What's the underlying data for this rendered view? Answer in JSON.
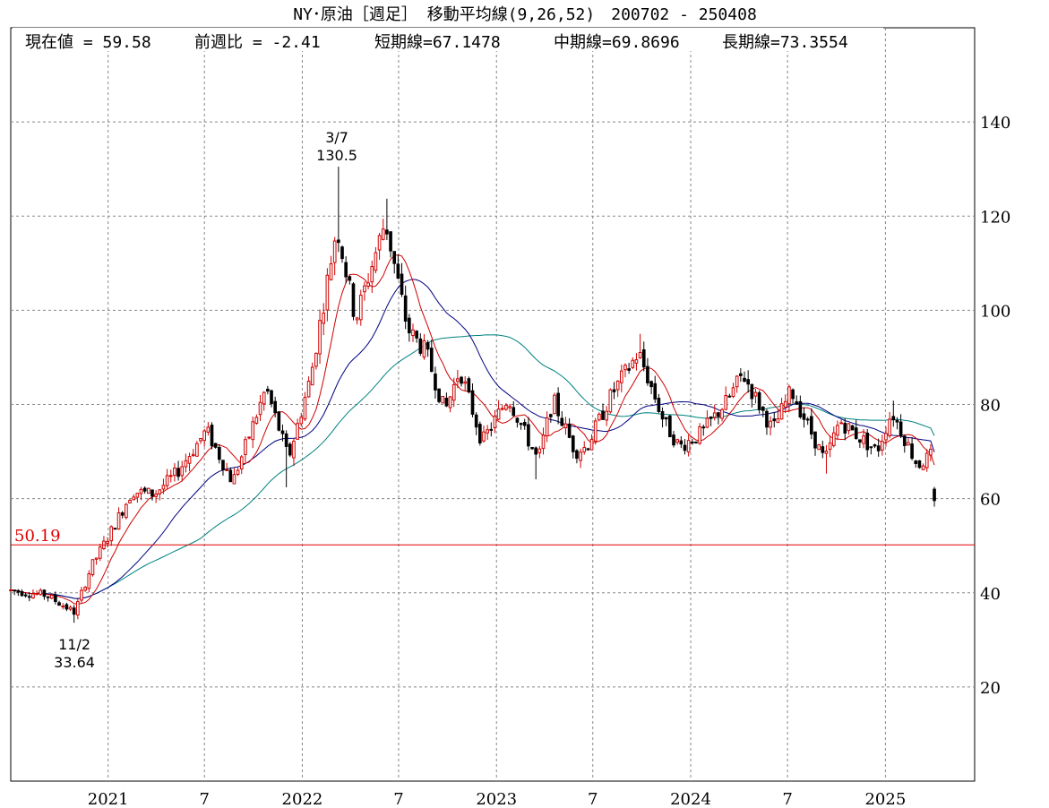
{
  "chart_data": {
    "type": "candlestick",
    "title": "NY･原油［週足］ 移動平均線(9,26,52)　200702 - 250408",
    "info": {
      "current": "現在値 = 59.58",
      "weekly_change": "前週比 = -2.41",
      "short_ma": "短期線=67.1478",
      "mid_ma": "中期線=69.8696",
      "long_ma": "長期線=73.3554"
    },
    "ylim": [
      0,
      160
    ],
    "yticks": [
      20,
      40,
      60,
      80,
      100,
      120,
      140
    ],
    "xlim": [
      "2020-07-02",
      "2025-04-08"
    ],
    "xticks": [
      {
        "date": "2021-01-01",
        "label": "2021"
      },
      {
        "date": "2021-07-01",
        "label": "7"
      },
      {
        "date": "2022-01-01",
        "label": "2022"
      },
      {
        "date": "2022-07-01",
        "label": "7"
      },
      {
        "date": "2023-01-01",
        "label": "2023"
      },
      {
        "date": "2023-07-01",
        "label": "7"
      },
      {
        "date": "2024-01-01",
        "label": "2024"
      },
      {
        "date": "2024-07-01",
        "label": "7"
      },
      {
        "date": "2025-01-01",
        "label": "2025"
      }
    ],
    "reference_line": {
      "value": 50.19,
      "label": "50.19",
      "color": "#e00000"
    },
    "annotations": [
      {
        "date": "2022-03-07",
        "value": 130.5,
        "label_date": "3/7",
        "label_value": "130.5",
        "position": "above"
      },
      {
        "date": "2020-11-02",
        "value": 33.64,
        "label_date": "11/2",
        "label_value": "33.64",
        "position": "below"
      }
    ],
    "colors": {
      "up": "#d00000",
      "down": "#000000",
      "short_ma": "#d00000",
      "mid_ma": "#000080",
      "long_ma": "#008080"
    },
    "keypoints": [
      [
        "2020-07-02",
        40.5
      ],
      [
        "2020-09-07",
        39.5
      ],
      [
        "2020-10-30",
        35.8
      ],
      [
        "2020-11-30",
        45.5
      ],
      [
        "2021-01-04",
        52.5
      ],
      [
        "2021-02-15",
        61.5
      ],
      [
        "2021-03-29",
        61.0
      ],
      [
        "2021-05-10",
        65.5
      ],
      [
        "2021-07-05",
        74.5
      ],
      [
        "2021-08-23",
        63.5
      ],
      [
        "2021-10-25",
        83.5
      ],
      [
        "2021-12-06",
        68.5
      ],
      [
        "2022-01-17",
        86.0
      ],
      [
        "2022-03-07",
        118.0
      ],
      [
        "2022-04-11",
        98.0
      ],
      [
        "2022-06-06",
        119.0
      ],
      [
        "2022-07-18",
        96.0
      ],
      [
        "2022-08-22",
        91.0
      ],
      [
        "2022-09-26",
        78.5
      ],
      [
        "2022-10-24",
        87.5
      ],
      [
        "2022-12-05",
        72.0
      ],
      [
        "2023-01-23",
        81.5
      ],
      [
        "2023-03-20",
        68.0
      ],
      [
        "2023-04-17",
        81.0
      ],
      [
        "2023-05-29",
        70.0
      ],
      [
        "2023-06-19",
        71.0
      ],
      [
        "2023-08-07",
        82.5
      ],
      [
        "2023-09-25",
        91.0
      ],
      [
        "2023-11-13",
        76.0
      ],
      [
        "2023-12-11",
        71.0
      ],
      [
        "2024-01-22",
        74.0
      ],
      [
        "2024-03-11",
        81.0
      ],
      [
        "2024-04-08",
        86.5
      ],
      [
        "2024-06-03",
        74.5
      ],
      [
        "2024-07-08",
        83.0
      ],
      [
        "2024-09-09",
        68.0
      ],
      [
        "2024-10-07",
        76.5
      ],
      [
        "2024-12-16",
        70.0
      ],
      [
        "2025-01-13",
        78.5
      ],
      [
        "2025-03-03",
        67.0
      ],
      [
        "2025-03-31",
        69.5
      ],
      [
        "2025-04-07",
        60.5
      ]
    ],
    "low_points": [
      [
        "2020-10-30",
        33.64
      ],
      [
        "2021-12-01",
        62.4
      ],
      [
        "2023-03-17",
        64.1
      ],
      [
        "2024-09-10",
        65.3
      ],
      [
        "2025-04-08",
        58.3
      ]
    ],
    "high_points": [
      [
        "2022-03-07",
        130.5
      ],
      [
        "2022-06-08",
        123.7
      ],
      [
        "2023-09-28",
        95.0
      ],
      [
        "2024-04-05",
        87.7
      ],
      [
        "2025-01-15",
        80.8
      ]
    ],
    "short_ma_endpoint": 67.1478,
    "mid_ma_endpoint": 69.8696,
    "long_ma_endpoint": 73.3554
  }
}
